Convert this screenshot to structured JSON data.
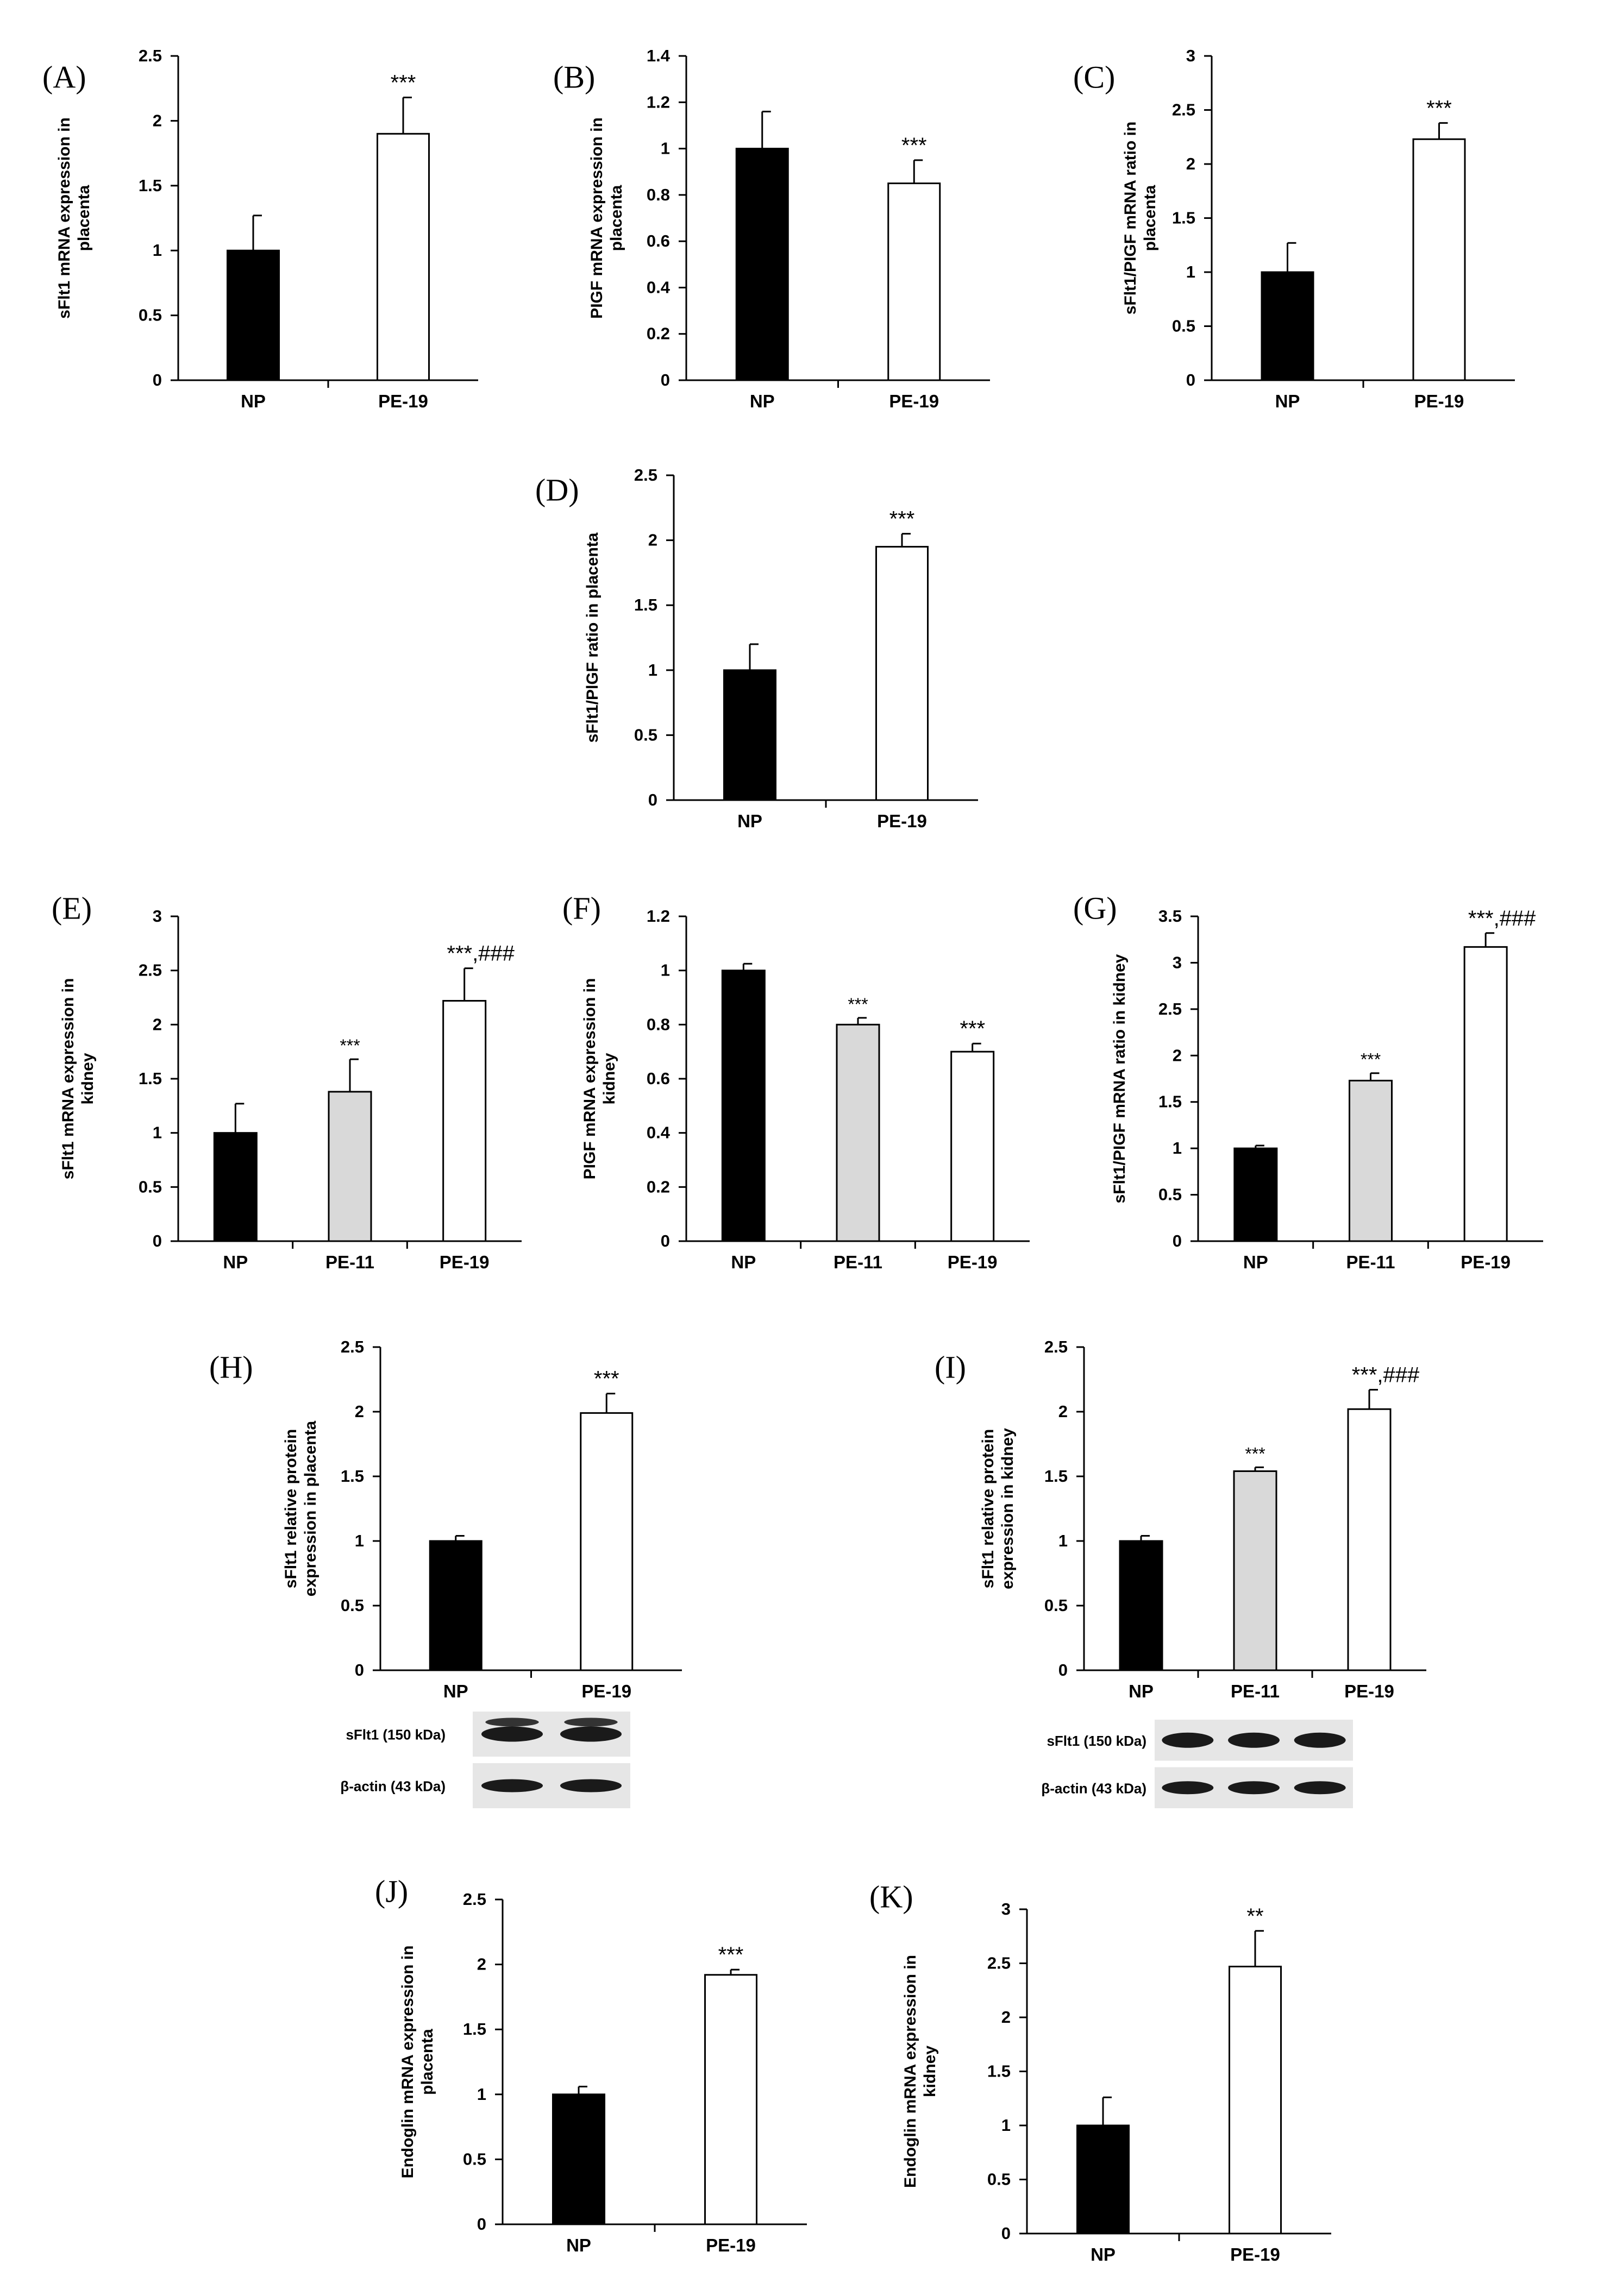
{
  "colors": {
    "NP": "#000000",
    "PE-11": "#d9d9d9",
    "PE-19": "#ffffff",
    "axis": "#000000"
  },
  "chart_data": [
    {
      "id": "A",
      "type": "bar",
      "panel_label": "(A)",
      "ylabel": "sFlt1 mRNA expression in placenta",
      "categories": [
        "NP",
        "PE-19"
      ],
      "values": [
        1.0,
        1.9
      ],
      "errors": [
        0.27,
        0.28
      ],
      "annotations": [
        "",
        "***"
      ],
      "ylim": [
        0,
        2.5
      ],
      "yticks": [
        "0",
        "0.5",
        "1",
        "1.5",
        "2",
        "2.5"
      ]
    },
    {
      "id": "B",
      "type": "bar",
      "panel_label": "(B)",
      "ylabel": "PIGF mRNA expression in placenta",
      "categories": [
        "NP",
        "PE-19"
      ],
      "values": [
        1.0,
        0.85
      ],
      "errors": [
        0.16,
        0.1
      ],
      "annotations": [
        "",
        "***"
      ],
      "ylim": [
        0,
        1.4
      ],
      "yticks": [
        "0",
        "0.2",
        "0.4",
        "0.6",
        "0.8",
        "1",
        "1.2",
        "1.4"
      ]
    },
    {
      "id": "C",
      "type": "bar",
      "panel_label": "(C)",
      "ylabel": "sFlt1/PIGF mRNA ratio in placenta",
      "categories": [
        "NP",
        "PE-19"
      ],
      "values": [
        1.0,
        2.23
      ],
      "errors": [
        0.27,
        0.15
      ],
      "annotations": [
        "",
        "***"
      ],
      "ylim": [
        0,
        3
      ],
      "yticks": [
        "0",
        "0.5",
        "1",
        "1.5",
        "2",
        "2.5",
        "3"
      ]
    },
    {
      "id": "D",
      "type": "bar",
      "panel_label": "(D)",
      "ylabel": "sFlt1/PlGF ratio in placenta",
      "categories": [
        "NP",
        "PE-19"
      ],
      "values": [
        1.0,
        1.95
      ],
      "errors": [
        0.2,
        0.1
      ],
      "annotations": [
        "",
        "***"
      ],
      "ylim": [
        0,
        2.5
      ],
      "yticks": [
        "0",
        "0.5",
        "1",
        "1.5",
        "2",
        "2.5"
      ]
    },
    {
      "id": "E",
      "type": "bar",
      "panel_label": "(E)",
      "ylabel": "sFlt1 mRNA expression in kidney",
      "categories": [
        "NP",
        "PE-11",
        "PE-19"
      ],
      "values": [
        1.0,
        1.38,
        2.22
      ],
      "errors": [
        0.27,
        0.3,
        0.3
      ],
      "annotations": [
        "",
        "***",
        "***,###"
      ],
      "ylim": [
        0,
        3
      ],
      "yticks": [
        "0",
        "0.5",
        "1",
        "1.5",
        "2",
        "2.5",
        "3"
      ]
    },
    {
      "id": "F",
      "type": "bar",
      "panel_label": "(F)",
      "ylabel": "PIGF mRNA expression in kidney",
      "categories": [
        "NP",
        "PE-11",
        "PE-19"
      ],
      "values": [
        1.0,
        0.8,
        0.7
      ],
      "errors": [
        0.025,
        0.025,
        0.03
      ],
      "annotations": [
        "",
        "***",
        "***"
      ],
      "ylim": [
        0,
        1.2
      ],
      "yticks": [
        "0",
        "0.2",
        "0.4",
        "0.6",
        "0.8",
        "1",
        "1.2"
      ]
    },
    {
      "id": "G",
      "type": "bar",
      "panel_label": "(G)",
      "ylabel": "sFlt1/PIGF mRNA ratio in kidney",
      "categories": [
        "NP",
        "PE-11",
        "PE-19"
      ],
      "values": [
        1.0,
        1.73,
        3.17
      ],
      "errors": [
        0.03,
        0.08,
        0.15
      ],
      "annotations": [
        "",
        "***",
        "***,###"
      ],
      "ylim": [
        0,
        3.5
      ],
      "yticks": [
        "0",
        "0.5",
        "1",
        "1.5",
        "2",
        "2.5",
        "3",
        "3.5"
      ]
    },
    {
      "id": "H",
      "type": "bar",
      "panel_label": "(H)",
      "ylabel": "sFlt1 relative protein expression in placenta",
      "categories": [
        "NP",
        "PE-19"
      ],
      "values": [
        1.0,
        1.99
      ],
      "errors": [
        0.04,
        0.15
      ],
      "annotations": [
        "",
        "***"
      ],
      "ylim": [
        0,
        2.5
      ],
      "yticks": [
        "0",
        "0.5",
        "1",
        "1.5",
        "2",
        "2.5"
      ],
      "blot_labels": [
        "sFlt1 (150 kDa)",
        "β-actin (43 kDa)"
      ]
    },
    {
      "id": "I",
      "type": "bar",
      "panel_label": "(I)",
      "ylabel": "sFlt1 relative protein expression in kidney",
      "categories": [
        "NP",
        "PE-11",
        "PE-19"
      ],
      "values": [
        1.0,
        1.54,
        2.02
      ],
      "errors": [
        0.04,
        0.03,
        0.15
      ],
      "annotations": [
        "",
        "***",
        "***,###"
      ],
      "ylim": [
        0,
        2.5
      ],
      "yticks": [
        "0",
        "0.5",
        "1",
        "1.5",
        "2",
        "2.5"
      ],
      "blot_labels": [
        "sFlt1 (150 kDa)",
        "β-actin (43 kDa)"
      ]
    },
    {
      "id": "J",
      "type": "bar",
      "panel_label": "(J)",
      "ylabel": "Endoglin mRNA expression in placenta",
      "categories": [
        "NP",
        "PE-19"
      ],
      "values": [
        1.0,
        1.92
      ],
      "errors": [
        0.06,
        0.04
      ],
      "annotations": [
        "",
        "***"
      ],
      "ylim": [
        0,
        2.5
      ],
      "yticks": [
        "0",
        "0.5",
        "1",
        "1.5",
        "2",
        "2.5"
      ]
    },
    {
      "id": "K",
      "type": "bar",
      "panel_label": "(K)",
      "ylabel": "Endoglin mRNA expression in kidney",
      "categories": [
        "NP",
        "PE-19"
      ],
      "values": [
        1.0,
        2.47
      ],
      "errors": [
        0.26,
        0.33
      ],
      "annotations": [
        "",
        "**"
      ],
      "ylim": [
        0,
        3
      ],
      "yticks": [
        "0",
        "0.5",
        "1",
        "1.5",
        "2",
        "2.5",
        "3"
      ]
    }
  ]
}
